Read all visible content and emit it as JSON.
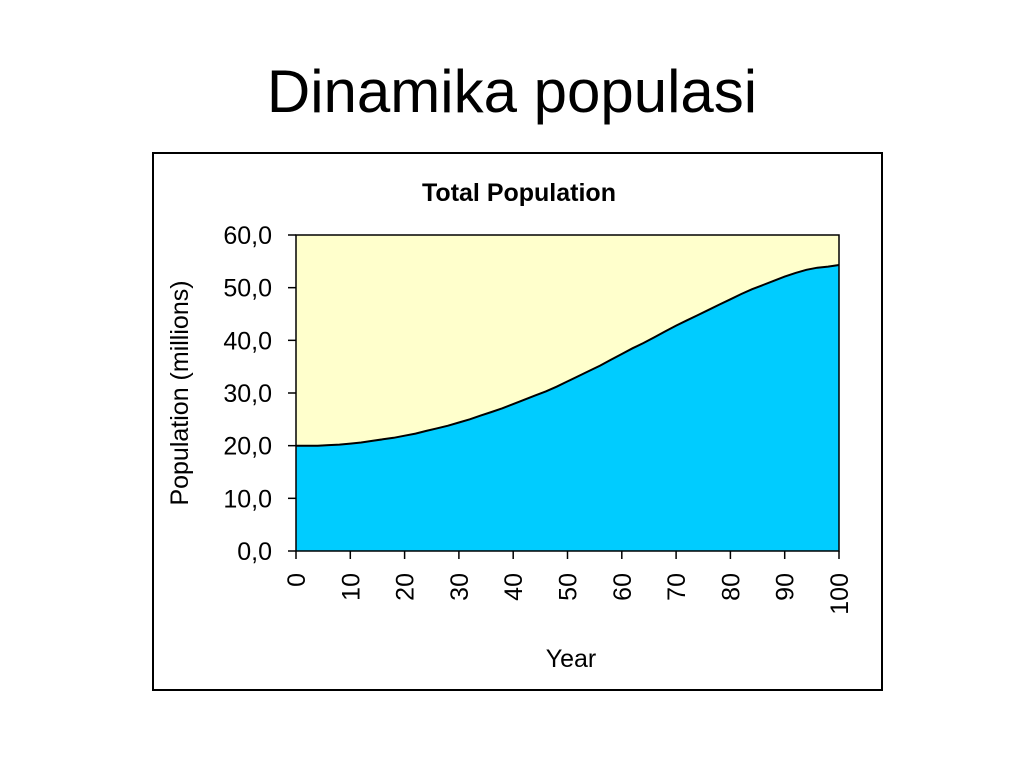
{
  "slide": {
    "title": "Dinamika populasi"
  },
  "colors": {
    "plot_background": "#ffffcc",
    "area_fill": "#00ccff",
    "line": "#000000",
    "border": "#000000"
  },
  "chart_data": {
    "type": "area",
    "title": "Total Population",
    "xlabel": "Year",
    "ylabel": "Population (millions)",
    "xlim": [
      0,
      100
    ],
    "ylim": [
      0,
      60
    ],
    "xticks": [
      "0",
      "10",
      "20",
      "30",
      "40",
      "50",
      "60",
      "70",
      "80",
      "90",
      "100"
    ],
    "yticks": [
      "0,0",
      "10,0",
      "20,0",
      "30,0",
      "40,0",
      "50,0",
      "60,0"
    ],
    "grid": false,
    "legend": "none",
    "x": [
      0,
      2,
      4,
      6,
      8,
      10,
      12,
      14,
      16,
      18,
      20,
      22,
      24,
      26,
      28,
      30,
      32,
      34,
      36,
      38,
      40,
      42,
      44,
      46,
      48,
      50,
      52,
      54,
      56,
      58,
      60,
      62,
      64,
      66,
      68,
      70,
      72,
      74,
      76,
      78,
      80,
      82,
      84,
      86,
      88,
      90,
      92,
      94,
      96,
      98,
      100
    ],
    "series": [
      {
        "values": [
          20.0,
          20.0,
          20.0,
          20.1,
          20.2,
          20.4,
          20.6,
          20.9,
          21.2,
          21.5,
          21.9,
          22.3,
          22.8,
          23.3,
          23.8,
          24.4,
          25.0,
          25.7,
          26.4,
          27.1,
          27.9,
          28.7,
          29.5,
          30.3,
          31.2,
          32.2,
          33.2,
          34.2,
          35.2,
          36.3,
          37.4,
          38.5,
          39.5,
          40.6,
          41.7,
          42.8,
          43.8,
          44.8,
          45.8,
          46.8,
          47.8,
          48.8,
          49.7,
          50.5,
          51.3,
          52.1,
          52.8,
          53.4,
          53.8,
          54.0,
          54.3
        ]
      }
    ]
  }
}
